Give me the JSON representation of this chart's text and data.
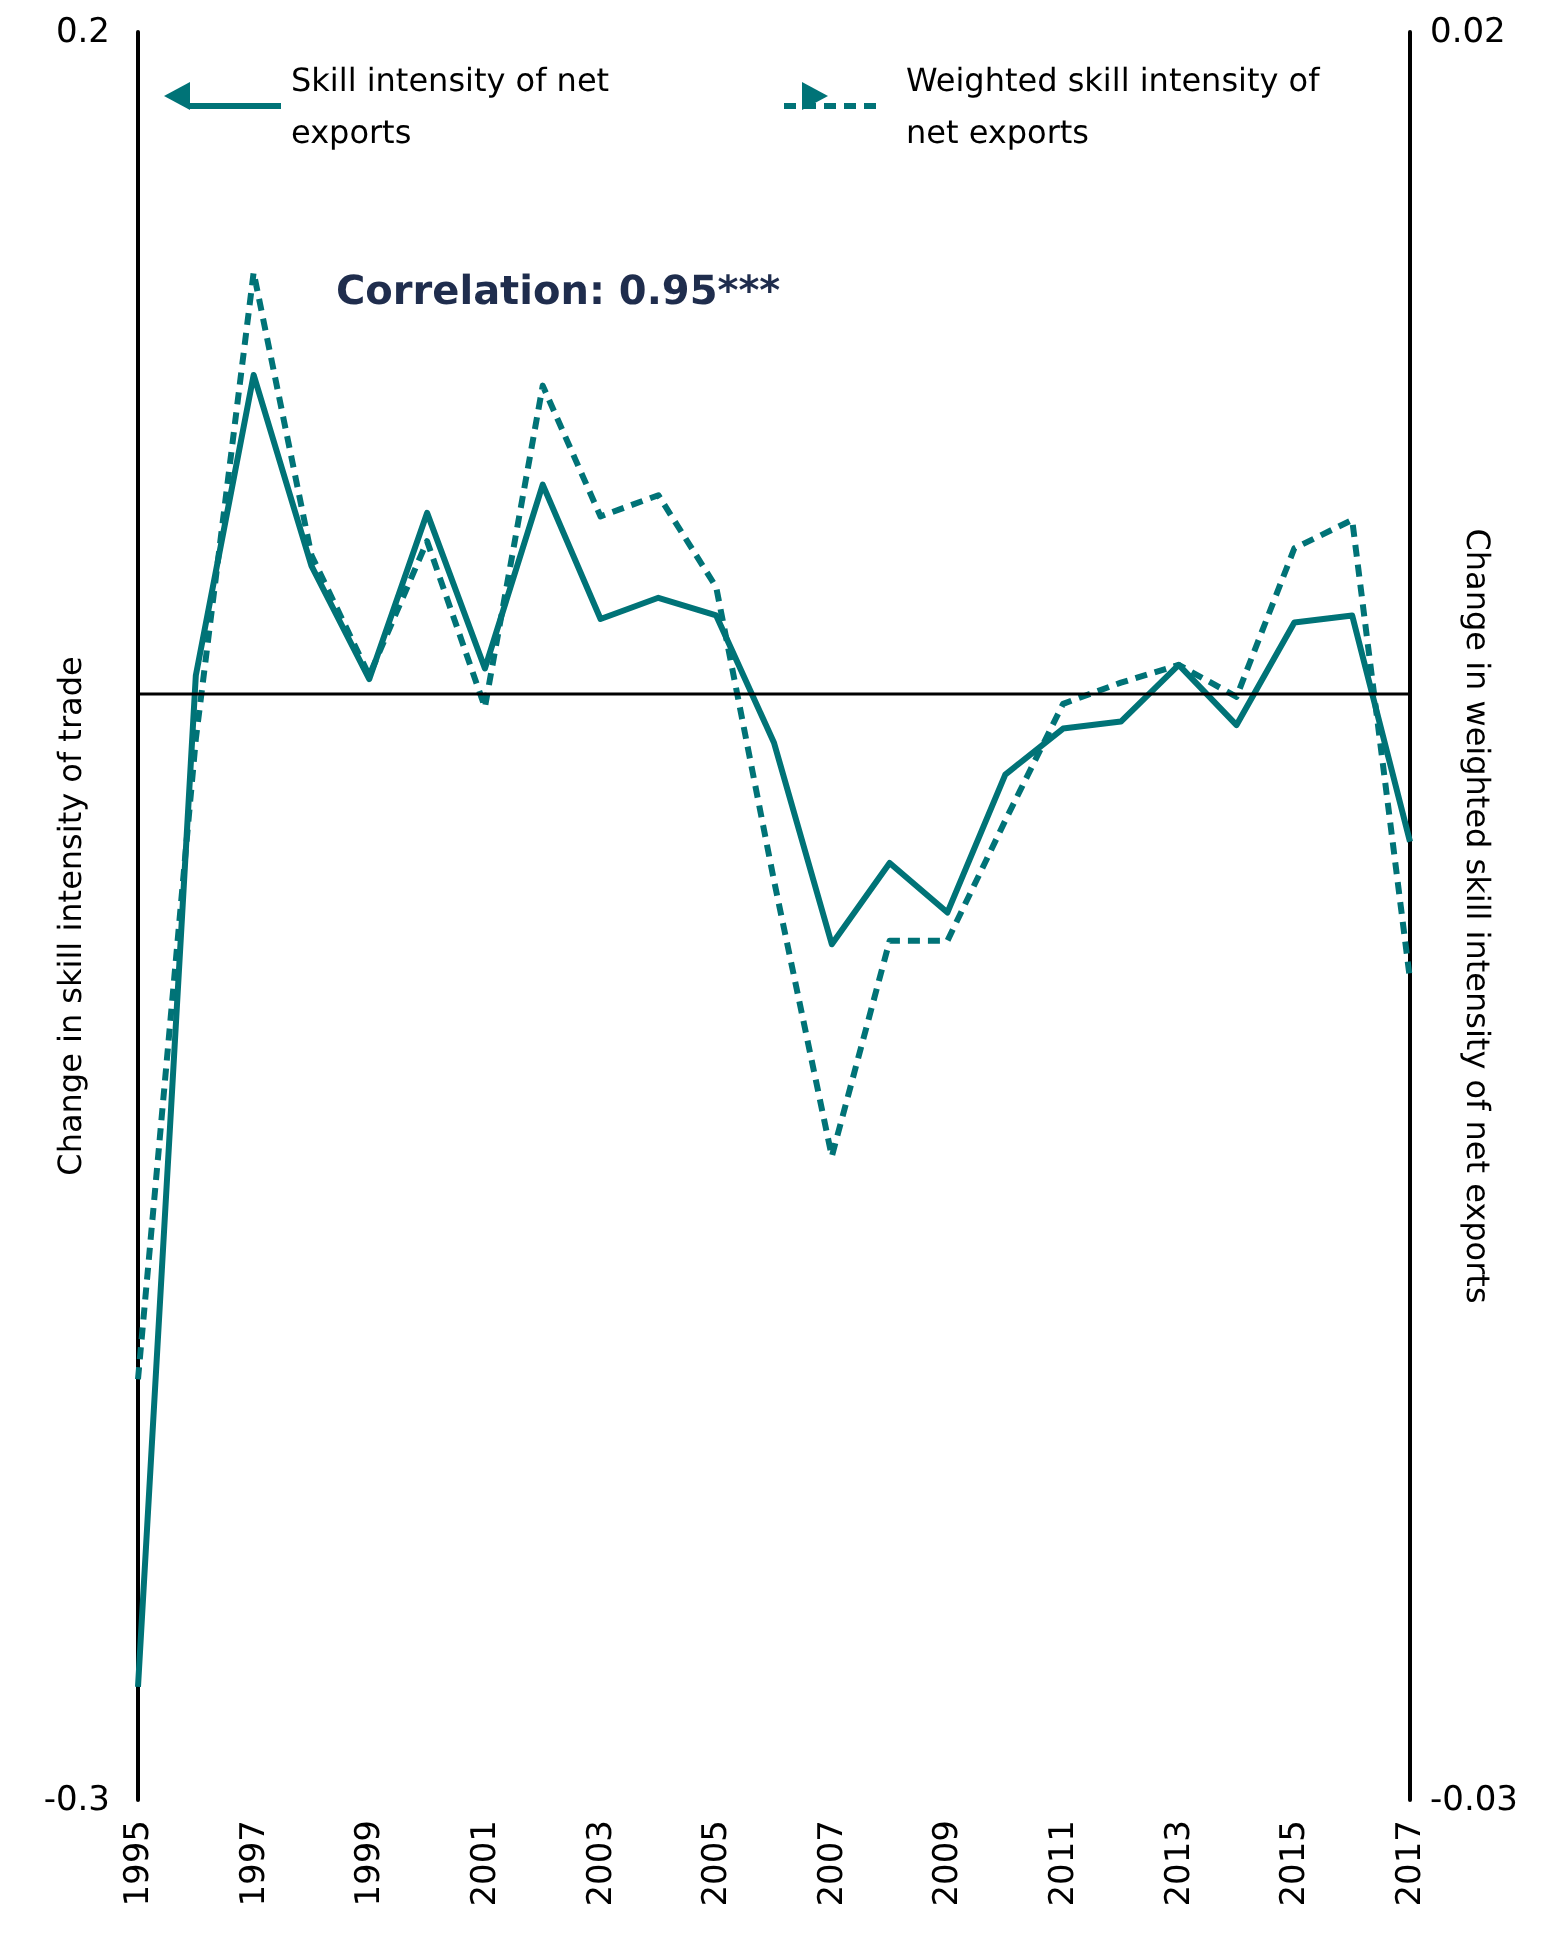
{
  "chart_data": {
    "type": "line",
    "ylabel": "Change in skill intensity of trade",
    "y2label": "Change in weighted skill intensity of net exports",
    "categories": [
      "1995",
      null,
      "1997",
      null,
      "1999",
      null,
      "2001",
      null,
      "2003",
      null,
      "2005",
      null,
      "2007",
      null,
      "2009",
      null,
      "2011",
      null,
      "2013",
      null,
      "2015",
      null,
      "2017"
    ],
    "series": [
      {
        "name": "Skill intensity of net exports",
        "color": "#007377",
        "line_style": "solid",
        "values": [
          -0.268,
          0.018,
          0.103,
          0.049,
          0.017,
          0.064,
          0.02,
          0.072,
          0.034,
          0.04,
          0.035,
          -0.001,
          -0.058,
          -0.035,
          -0.049,
          -0.01,
          0.003,
          0.005,
          0.021,
          0.004,
          0.033,
          0.035,
          -0.029
        ]
      },
      {
        "name": "Weighted skill intensity of net exports",
        "color": "#007377",
        "line_style": "dashed",
        "axis": "y2",
        "values": [
          -0.0181,
          0.0,
          0.0132,
          0.0052,
          0.0018,
          0.0056,
          0.0009,
          0.01,
          0.0063,
          0.0069,
          0.0043,
          -0.004,
          -0.0118,
          -0.0057,
          -0.0057,
          -0.0023,
          0.001,
          0.0016,
          0.0021,
          0.0012,
          0.0054,
          0.0062,
          -0.0068
        ]
      }
    ],
    "ylim": [
      -0.3,
      0.2
    ],
    "yticks": [
      -0.3,
      0.2
    ],
    "y2lim": [
      -0.03,
      0.02
    ],
    "y2ticks": [
      -0.03,
      0.02
    ],
    "ref_lines": [
      {
        "axis": "y",
        "value": 0.013,
        "color": "#000000"
      }
    ],
    "annotations": [
      "Correlation: 0.95***"
    ],
    "legend": "top",
    "marker": "none",
    "grid": false
  }
}
